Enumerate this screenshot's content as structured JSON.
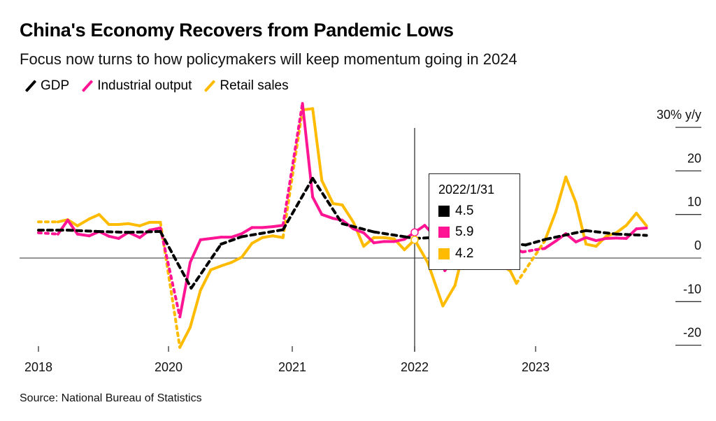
{
  "header": {
    "title": "China's Economy Recovers from Pandemic Lows",
    "subtitle": "Focus now turns to how policymakers will keep momentum going in 2024"
  },
  "footer": {
    "source": "Source: National Bureau of Statistics"
  },
  "tooltip": {
    "date": "2022/1/31",
    "values": [
      "4.5",
      "5.9",
      "4.2"
    ]
  },
  "chart_data": {
    "type": "line",
    "title": "China's Economy Recovers from Pandemic Lows",
    "ylabel": "30% y/y",
    "ylim": [
      -20,
      30
    ],
    "y_ticks": [
      {
        "v": 30,
        "label": "30% y/y"
      },
      {
        "v": 20,
        "label": "20"
      },
      {
        "v": 10,
        "label": "10"
      },
      {
        "v": 0,
        "label": "0"
      },
      {
        "v": -10,
        "label": "-10"
      },
      {
        "v": -20,
        "label": "-20"
      }
    ],
    "x_unit": "months since Jan 2018",
    "x_ticks": [
      {
        "m": 0,
        "label": "2018"
      },
      {
        "m": 24,
        "label": "2020"
      },
      {
        "m": 36,
        "label": "2021"
      },
      {
        "m": 48,
        "label": "2022"
      },
      {
        "m": 60,
        "label": "2023"
      }
    ],
    "legend": "top-left",
    "series": [
      {
        "name": "GDP",
        "color": "#000000",
        "all_dashed": true,
        "x": [
          0,
          3.6,
          5.4,
          11,
          16.6,
          22.5,
          26.2,
          29.1,
          31.1,
          35.1,
          38,
          40.9,
          44,
          47,
          48,
          49.9,
          53,
          56,
          59,
          61,
          65,
          68,
          71
        ],
        "y": [
          6.4,
          6.4,
          6.4,
          6.1,
          5.9,
          6.1,
          -6.9,
          3.2,
          4.9,
          6.5,
          18.3,
          7.9,
          6,
          4.9,
          4.5,
          4.7,
          0.4,
          3.9,
          3,
          4.3,
          6.3,
          5.5,
          5.2
        ]
      },
      {
        "name": "Industrial output",
        "color": "#ff1493",
        "dashed": [
          [
            0,
            3.6
          ],
          [
            22.5,
            25.1
          ],
          [
            35.1,
            37
          ],
          [
            58.7,
            60.9
          ]
        ],
        "x": [
          0,
          3.6,
          5.4,
          7.2,
          9.4,
          11.2,
          13,
          14.8,
          16.6,
          18.7,
          20.5,
          22.5,
          25.1,
          26.1,
          27.1,
          28.1,
          29.1,
          30.1,
          31.1,
          32.1,
          33.1,
          34.1,
          35.1,
          37,
          38,
          38.9,
          40,
          40.9,
          42,
          43,
          44,
          45,
          46,
          47,
          48,
          49,
          50,
          51,
          52,
          53,
          54,
          55,
          56,
          57.5,
          58.7,
          60,
          60.9,
          62,
          63,
          64,
          65,
          66,
          67,
          68,
          69,
          70,
          71
        ],
        "y": [
          5.8,
          5.5,
          8.7,
          5.5,
          5.1,
          6.1,
          5,
          4.5,
          5.9,
          4.7,
          6.4,
          6.9,
          -13.5,
          -1,
          4.2,
          4.5,
          4.8,
          4.8,
          5.6,
          7,
          7,
          7.2,
          7.5,
          35.5,
          14,
          10,
          9.1,
          8.7,
          6.7,
          5.8,
          3.5,
          3.8,
          3.8,
          4.3,
          5.9,
          7.5,
          5,
          -2.9,
          0.7,
          3.9,
          3.8,
          4.2,
          3.6,
          2.5,
          1.4,
          1.9,
          2.2,
          3.9,
          5.6,
          3.7,
          4.7,
          4,
          4.5,
          4.6,
          4.5,
          6.7,
          6.9
        ]
      },
      {
        "name": "Retail sales",
        "color": "#ffbb00",
        "dashed": [
          [
            0,
            3.6
          ],
          [
            22.5,
            25.1
          ],
          [
            35.1,
            37
          ],
          [
            58.1,
            60.9
          ]
        ],
        "x": [
          0,
          3.6,
          5.4,
          7.2,
          9.4,
          11.2,
          13,
          14.8,
          16.6,
          18.7,
          20.5,
          22.5,
          25.1,
          26.1,
          27.1,
          28.1,
          29.1,
          30.1,
          31.1,
          32.1,
          33.1,
          34.1,
          35.1,
          37,
          38,
          38.9,
          40,
          40.9,
          42,
          43,
          44,
          45,
          46,
          47,
          48,
          49.3,
          50.8,
          52,
          53,
          54,
          55,
          56,
          57.5,
          58.1,
          60.9,
          62,
          63,
          64,
          65,
          66,
          67,
          68,
          69,
          70,
          71
        ],
        "y": [
          8.3,
          8.3,
          8.8,
          7.4,
          9,
          10,
          7.7,
          7.7,
          7.9,
          7.4,
          8.2,
          8.2,
          -20.5,
          -15.9,
          -7.4,
          -2.7,
          -1.8,
          -1,
          0.2,
          3.4,
          4.7,
          5.1,
          4.7,
          34,
          34.3,
          17.8,
          12.5,
          12.2,
          8.2,
          2.7,
          4.7,
          4.7,
          4.4,
          1.9,
          4.2,
          -1,
          -11,
          -6.3,
          3.1,
          0.7,
          2.7,
          -0.5,
          -3,
          -5.8,
          3.9,
          10.6,
          18.6,
          12.7,
          3.2,
          2.7,
          5,
          5.8,
          7.5,
          10.3,
          7.4
        ]
      }
    ]
  }
}
